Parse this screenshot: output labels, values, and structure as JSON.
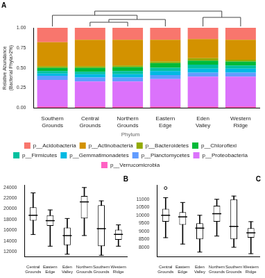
{
  "chart_data": [
    {
      "type": "bar",
      "title": "A",
      "stacked": true,
      "grid": false,
      "legend": "bottom",
      "legend_title": "Phylum",
      "y_label": "Relative Abundance (Bacterial Phyla>2%)",
      "categories": [
        "Southern Grounds",
        "Central Grounds",
        "Northern Grounds",
        "Eastern Edge",
        "Eden Valley",
        "Western Ridge"
      ],
      "ylim": [
        0,
        1
      ],
      "yticks": [
        {
          "value": 0,
          "label": "0.00"
        },
        {
          "value": 0.25,
          "label": "0.25"
        },
        {
          "value": 0.5,
          "label": "0.50"
        },
        {
          "value": 0.75,
          "label": "0.75"
        },
        {
          "value": 1,
          "label": "1.00"
        }
      ],
      "series": [
        {
          "name": "p__Acidobacteria",
          "color": "#F8766D",
          "values": [
            0.18,
            0.15,
            0.15,
            0.15,
            0.14,
            0.15
          ]
        },
        {
          "name": "p__Actinobacteria",
          "color": "#D39200",
          "values": [
            0.3,
            0.33,
            0.32,
            0.27,
            0.24,
            0.25
          ]
        },
        {
          "name": "p__Bacteroidetes",
          "color": "#93AA00",
          "values": [
            0.02,
            0.02,
            0.02,
            0.02,
            0.03,
            0.02
          ]
        },
        {
          "name": "p__Chloroflexi",
          "color": "#00BA38",
          "values": [
            0.04,
            0.05,
            0.05,
            0.06,
            0.05,
            0.05
          ]
        },
        {
          "name": "p__Firmicutes",
          "color": "#00C19F",
          "values": [
            0.03,
            0.03,
            0.04,
            0.04,
            0.05,
            0.04
          ]
        },
        {
          "name": "p__Gemmatimonadetes",
          "color": "#00B9E3",
          "values": [
            0.03,
            0.04,
            0.04,
            0.05,
            0.05,
            0.05
          ]
        },
        {
          "name": "p__Planctomycetes",
          "color": "#619CFF",
          "values": [
            0.05,
            0.05,
            0.05,
            0.05,
            0.05,
            0.05
          ]
        },
        {
          "name": "p__Proteobacteria",
          "color": "#DB72FB",
          "values": [
            0.33,
            0.31,
            0.31,
            0.34,
            0.37,
            0.37
          ]
        },
        {
          "name": "p__Verrucomicrobia",
          "color": "#FF61C3",
          "values": [
            0.02,
            0.02,
            0.02,
            0.02,
            0.02,
            0.02
          ]
        }
      ]
    },
    {
      "type": "box",
      "title": "B",
      "grid": false,
      "color": "#000000",
      "categories": [
        "Central Grounds",
        "Eastern Edge",
        "Eden Valley",
        "Northern Grounds",
        "Southern Grounds",
        "Western Ridge"
      ],
      "ylim": [
        11000,
        24500
      ],
      "yticks": [
        12000,
        14000,
        16000,
        18000,
        20000,
        22000,
        24000
      ],
      "min": [
        15200,
        13000,
        11500,
        15000,
        11300,
        13000
      ],
      "q1": [
        17800,
        16800,
        13200,
        18200,
        13000,
        14200
      ],
      "median": [
        18800,
        17800,
        15000,
        21300,
        16300,
        15200
      ],
      "q3": [
        20300,
        18800,
        16500,
        22400,
        20700,
        16100
      ],
      "max": [
        23000,
        19800,
        18200,
        24000,
        21500,
        17000
      ],
      "outliers": [
        [],
        [],
        [],
        [],
        [],
        []
      ]
    },
    {
      "type": "box",
      "title": "C",
      "grid": false,
      "color": "#000000",
      "categories": [
        "Central Grounds",
        "Eastern Edge",
        "Eden Valley",
        "Northern Grounds",
        "Southern Grounds",
        "Western Ridge"
      ],
      "ylim": [
        7400,
        11900
      ],
      "yticks": [
        8000,
        8500,
        9000,
        9500,
        10000,
        10500,
        11000
      ],
      "min": [
        8600,
        8200,
        7700,
        8700,
        8000,
        7600
      ],
      "q1": [
        9600,
        9400,
        8500,
        9600,
        8500,
        8600
      ],
      "median": [
        10000,
        9900,
        9200,
        10100,
        9300,
        8900
      ],
      "q3": [
        10400,
        10200,
        9500,
        10600,
        11000,
        9200
      ],
      "max": [
        11100,
        10800,
        10000,
        11000,
        11200,
        9600
      ],
      "outliers": [
        [
          11700
        ],
        [],
        [],
        [],
        [],
        []
      ]
    }
  ]
}
